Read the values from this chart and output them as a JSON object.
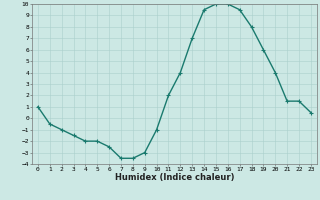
{
  "x": [
    0,
    1,
    2,
    3,
    4,
    5,
    6,
    7,
    8,
    9,
    10,
    11,
    12,
    13,
    14,
    15,
    16,
    17,
    18,
    19,
    20,
    21,
    22,
    23
  ],
  "y": [
    1,
    -0.5,
    -1,
    -1.5,
    -2,
    -2,
    -2.5,
    -3.5,
    -3.5,
    -3,
    -1,
    2,
    4,
    7,
    9.5,
    10,
    10,
    9.5,
    8,
    6,
    4,
    1.5,
    1.5,
    0.5
  ],
  "ylim": [
    -4,
    10
  ],
  "xlim": [
    -0.5,
    23.5
  ],
  "yticks": [
    -4,
    -3,
    -2,
    -1,
    0,
    1,
    2,
    3,
    4,
    5,
    6,
    7,
    8,
    9,
    10
  ],
  "xticks": [
    0,
    1,
    2,
    3,
    4,
    5,
    6,
    7,
    8,
    9,
    10,
    11,
    12,
    13,
    14,
    15,
    16,
    17,
    18,
    19,
    20,
    21,
    22,
    23
  ],
  "xlabel": "Humidex (Indice chaleur)",
  "line_color": "#1a7a6e",
  "bg_color": "#cce8e4",
  "grid_color": "#aad0cc",
  "marker": "+",
  "linewidth": 1.0,
  "markersize": 3,
  "tick_fontsize": 4.5,
  "xlabel_fontsize": 6.0
}
